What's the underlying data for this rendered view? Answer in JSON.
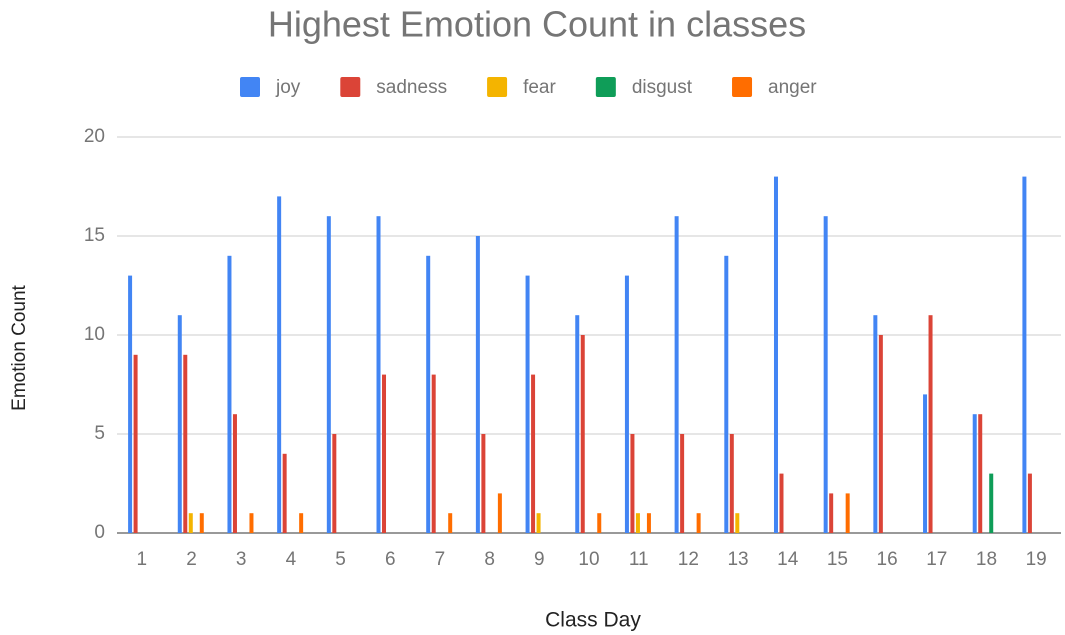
{
  "chart_data": {
    "type": "bar",
    "title": "Highest Emotion Count in classes",
    "x_label": "Class Day",
    "y_label": "Emotion Count",
    "categories": [
      "1",
      "2",
      "3",
      "4",
      "5",
      "6",
      "7",
      "8",
      "9",
      "10",
      "11",
      "12",
      "13",
      "14",
      "15",
      "16",
      "17",
      "18",
      "19"
    ],
    "series": [
      {
        "name": "joy",
        "color": "#4285f4",
        "values": [
          13,
          11,
          14,
          17,
          16,
          16,
          14,
          15,
          13,
          11,
          13,
          16,
          14,
          18,
          16,
          11,
          7,
          6,
          18
        ]
      },
      {
        "name": "sadness",
        "color": "#db4437",
        "values": [
          9,
          9,
          6,
          4,
          5,
          8,
          8,
          5,
          8,
          10,
          5,
          5,
          5,
          3,
          2,
          10,
          11,
          6,
          3
        ]
      },
      {
        "name": "fear",
        "color": "#f4b400",
        "values": [
          0,
          1,
          0,
          0,
          0,
          0,
          0,
          0,
          1,
          0,
          1,
          0,
          1,
          0,
          0,
          0,
          0,
          0,
          0
        ]
      },
      {
        "name": "disgust",
        "color": "#0f9d58",
        "values": [
          0,
          0,
          0,
          0,
          0,
          0,
          0,
          0,
          0,
          0,
          0,
          0,
          0,
          0,
          0,
          0,
          0,
          3,
          0
        ]
      },
      {
        "name": "anger",
        "color": "#ff6d00",
        "values": [
          0,
          1,
          1,
          1,
          0,
          0,
          1,
          2,
          0,
          1,
          1,
          1,
          0,
          0,
          2,
          0,
          0,
          0,
          0
        ]
      }
    ],
    "ylim": [
      0,
      20
    ],
    "yticks": [
      0,
      5,
      10,
      15,
      20
    ],
    "grid": true,
    "legend": "top"
  }
}
